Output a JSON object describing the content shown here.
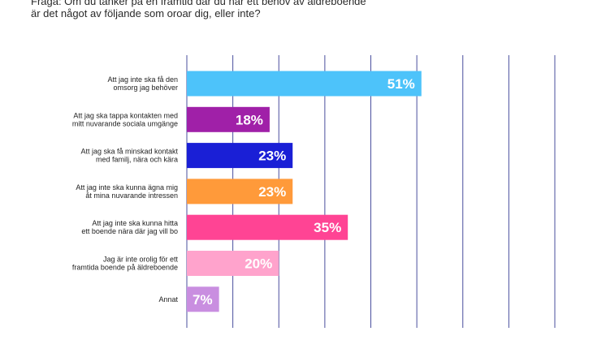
{
  "question": {
    "line1": "Fråga: Om du tänker på en framtid där du har ett behov av äldreboende",
    "line2": "är det något av följande som oroar dig, eller inte?"
  },
  "chart_data": {
    "type": "bar",
    "orientation": "horizontal",
    "title": "",
    "xlabel": "",
    "ylabel": "",
    "xlim": [
      0,
      80
    ],
    "gridlines": [
      0,
      10,
      20,
      30,
      40,
      50,
      60,
      70,
      80
    ],
    "grid": true,
    "legend": "none",
    "categories": [
      [
        "Att jag inte ska få den",
        "omsorg jag behöver"
      ],
      [
        "Att jag ska tappa kontakten med",
        "mitt nuvarande sociala umgänge"
      ],
      [
        "Att jag ska få minskad kontakt",
        "med familj, nära och kära"
      ],
      [
        "Att jag inte ska kunna ägna mig",
        "åt mina nuvarande intressen"
      ],
      [
        "Att jag inte ska kunna hitta",
        "ett boende nära där jag vill bo"
      ],
      [
        "Jag är inte orolig för ett",
        "framtida boende på äldreboende"
      ],
      [
        "Annat"
      ]
    ],
    "values": [
      51,
      18,
      23,
      23,
      35,
      20,
      7
    ],
    "value_labels": [
      "51%",
      "18%",
      "23%",
      "23%",
      "35%",
      "20%",
      "7%"
    ],
    "colors": [
      "#4DC3FA",
      "#A020A8",
      "#1A1FD6",
      "#FF9A3A",
      "#FF4494",
      "#FFA3CC",
      "#C98EE0"
    ],
    "gridline_color": "#4A4F9E"
  }
}
